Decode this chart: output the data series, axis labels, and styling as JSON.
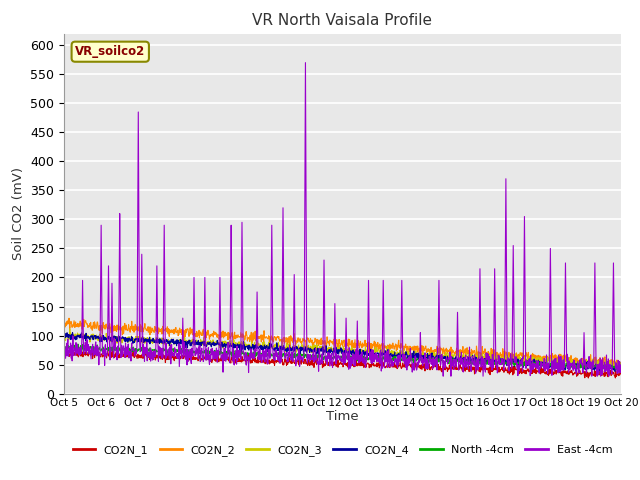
{
  "title": "VR North Vaisala Profile",
  "ylabel": "Soil CO2 (mV)",
  "xlabel": "Time",
  "annotation_text": "VR_soilco2",
  "ylim": [
    0,
    620
  ],
  "yticks": [
    0,
    50,
    100,
    150,
    200,
    250,
    300,
    350,
    400,
    450,
    500,
    550,
    600
  ],
  "xtick_labels": [
    "Oct 5",
    "Oct 6",
    "Oct 7",
    "Oct 8",
    "Oct 9",
    "Oct 10",
    "Oct 11",
    "Oct 12",
    "Oct 13",
    "Oct 14",
    "Oct 15",
    "Oct 16",
    "Oct 17",
    "Oct 18",
    "Oct 19",
    "Oct 20"
  ],
  "fig_bg_color": "#ffffff",
  "plot_bg_color": "#e8e8e8",
  "series_colors": {
    "CO2N_1": "#cc0000",
    "CO2N_2": "#ff8800",
    "CO2N_3": "#cccc00",
    "CO2N_4": "#000099",
    "North_4cm": "#00aa00",
    "East_4cm": "#9900cc"
  },
  "legend_labels": [
    "CO2N_1",
    "CO2N_2",
    "CO2N_3",
    "CO2N_4",
    "North -4cm",
    "East -4cm"
  ]
}
